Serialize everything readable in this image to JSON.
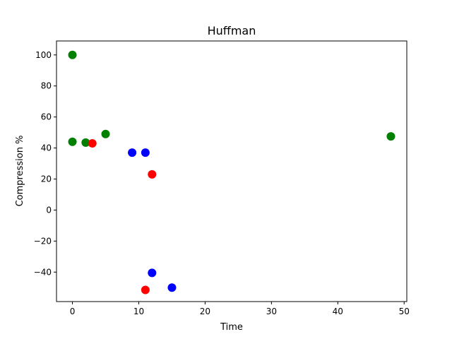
{
  "chart_data": {
    "type": "scatter",
    "title": "Huffman",
    "xlabel": "Time",
    "ylabel": "Compression %",
    "xlim": [
      -2.4,
      50.4
    ],
    "ylim": [
      -59,
      109
    ],
    "grid": false,
    "xticks": [
      0,
      10,
      20,
      30,
      40,
      50
    ],
    "yticks": [
      -40,
      -20,
      0,
      20,
      40,
      60,
      80,
      100
    ],
    "xtick_labels": [
      "0",
      "10",
      "20",
      "30",
      "40",
      "50"
    ],
    "ytick_labels": [
      "−40",
      "−20",
      "0",
      "20",
      "40",
      "60",
      "80",
      "100"
    ],
    "series": [
      {
        "color": "#008000",
        "points": [
          {
            "x": 0,
            "y": 100
          },
          {
            "x": 0,
            "y": 44
          },
          {
            "x": 2,
            "y": 43.5
          },
          {
            "x": 5,
            "y": 49
          },
          {
            "x": 48,
            "y": 47.5
          }
        ]
      },
      {
        "color": "#ff0000",
        "points": [
          {
            "x": 3,
            "y": 43
          },
          {
            "x": 12,
            "y": 23
          },
          {
            "x": 11,
            "y": -51.5
          }
        ]
      },
      {
        "color": "#0000ff",
        "points": [
          {
            "x": 9,
            "y": 37
          },
          {
            "x": 11,
            "y": 37
          },
          {
            "x": 12,
            "y": -40.5
          },
          {
            "x": 15,
            "y": -50
          }
        ]
      }
    ]
  }
}
